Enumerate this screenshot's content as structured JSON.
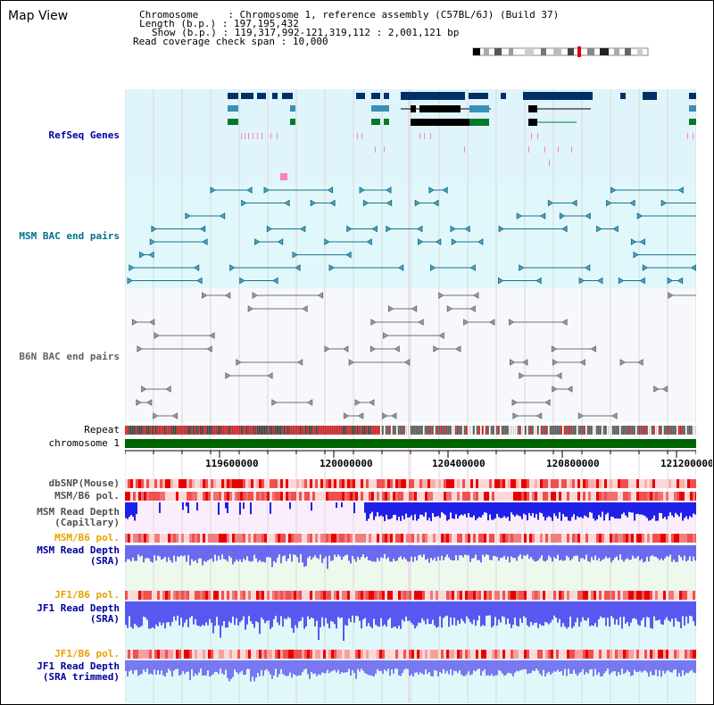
{
  "title": "Map View",
  "info": {
    "chromosome_label": "Chromosome",
    "chromosome_value": "Chromosome 1, reference assembly (C57BL/6J) (Build 37)",
    "length_label": "Length (b.p.)",
    "length_value": "197,195,432",
    "show_label": "Show (b.p.)",
    "show_value": "119,317,992-121,319,112 : 2,001,121 bp",
    "coverage_label": "Read coverage check span",
    "coverage_value": "10,000"
  },
  "tracks": {
    "refseq": "RefSeq Genes",
    "msm_bac": "MSM BAC end pairs",
    "b6n_bac": "B6N BAC end pairs",
    "repeat": "Repeat",
    "chromosome": "chromosome 1",
    "dbsnp": "dbSNP(Mouse)",
    "msm_b6_pol_1": "MSM/B6 pol.",
    "msm_depth_cap_1": "MSM Read Depth",
    "msm_depth_cap_2": "(Capillary)",
    "msm_b6_pol_2": "MSM/B6 pol.",
    "msm_depth_sra_1": "MSM Read Depth",
    "msm_depth_sra_2": "(SRA)",
    "jf1_b6_pol_1": "JF1/B6 pol.",
    "jf1_depth_sra_1": "JF1 Read Depth",
    "jf1_depth_sra_2": "(SRA)",
    "jf1_b6_pol_2": "JF1/B6 pol.",
    "jf1_depth_trim_1": "JF1 Read Depth",
    "jf1_depth_trim_2": "(SRA trimmed)"
  },
  "axis": {
    "ticks": [
      "119600000",
      "120000000",
      "120400000",
      "120800000",
      "121200000"
    ]
  },
  "colors": {
    "refseq_bg": "#e0f4fc",
    "msm_bg": "#e0f8fc",
    "b6n_bg": "#f6f8fc",
    "gene_dark": "#003066",
    "gene_mid": "#3c90b4",
    "gene_green": "#007a28",
    "chromosome_green": "#006400",
    "depth_blue": "#2020f0",
    "depth_light": "#8080f0"
  }
}
